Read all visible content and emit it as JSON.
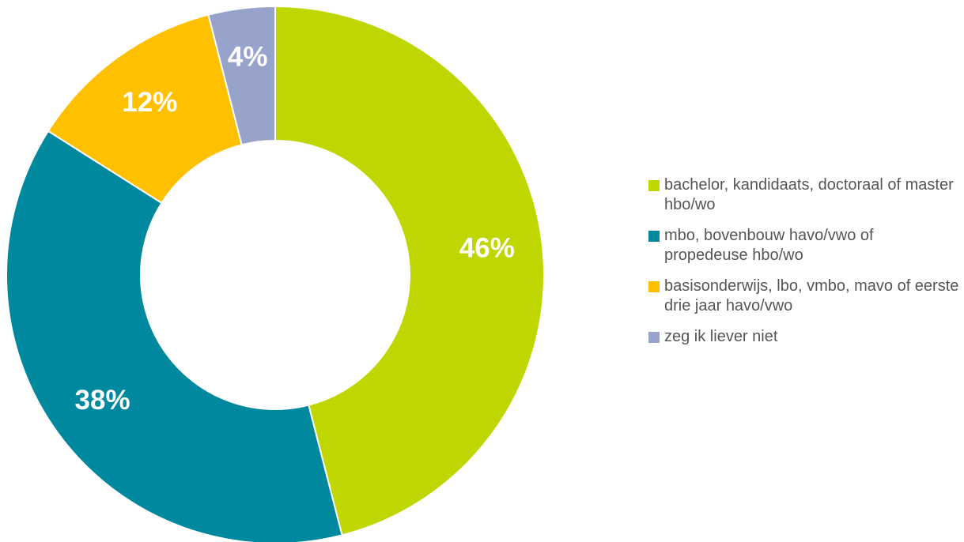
{
  "chart_data": {
    "type": "pie",
    "donut": true,
    "legend_position": "right",
    "slices": [
      {
        "label": "bachelor, kandidaats, doctoraal of master hbo/wo",
        "value": 46,
        "value_label": "46%",
        "color": "#bfd600"
      },
      {
        "label": "mbo, bovenbouw havo/vwo of propedeuse hbo/wo",
        "value": 38,
        "value_label": "38%",
        "color": "#00889f"
      },
      {
        "label": "basisonderwijs, lbo, vmbo, mavo of eerste drie jaar havo/vwo",
        "value": 12,
        "value_label": "12%",
        "color": "#ffc000"
      },
      {
        "label": "zeg ik liever niet",
        "value": 4,
        "value_label": "4%",
        "color": "#97a3ca"
      }
    ]
  }
}
